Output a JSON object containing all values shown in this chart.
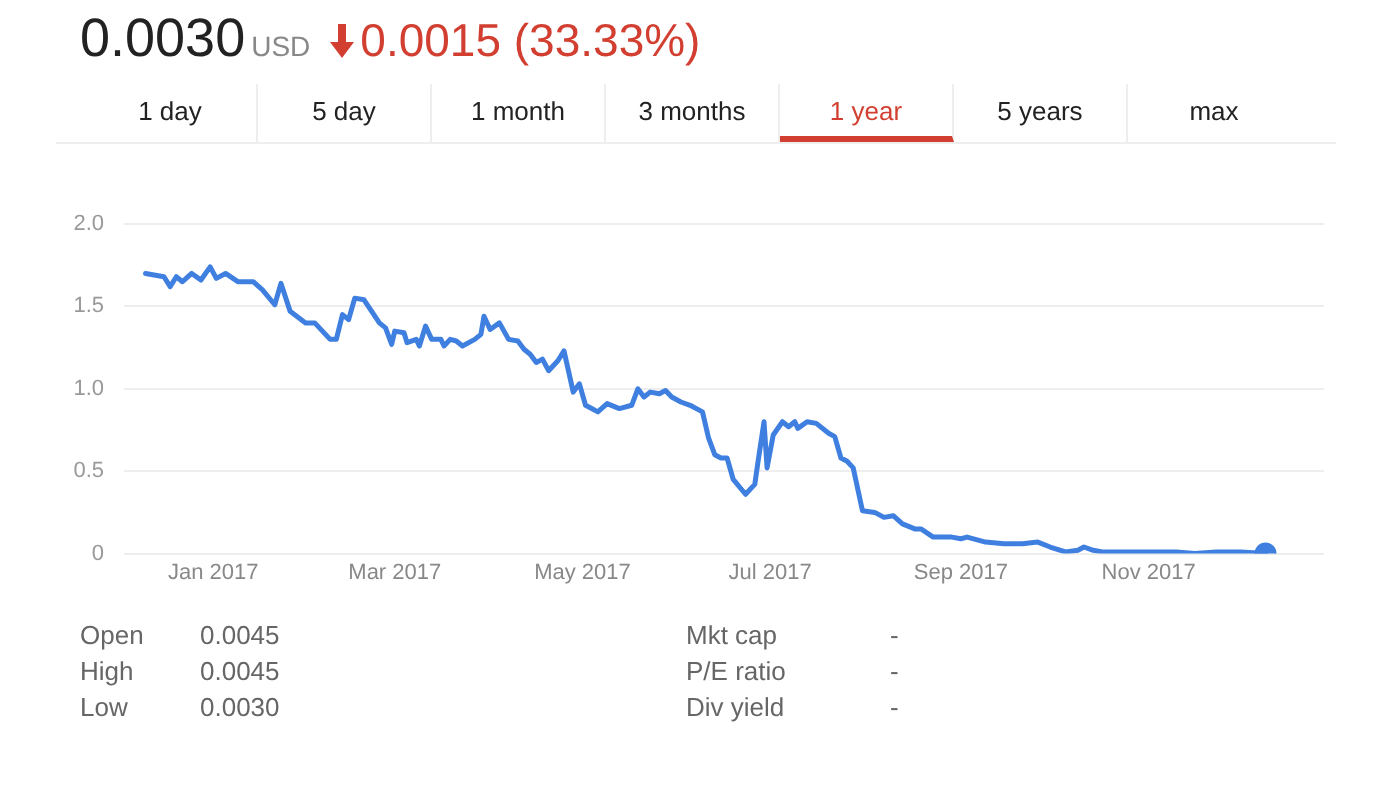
{
  "chart_data": {
    "type": "line",
    "title": "0.0030",
    "annotations": [
      "USD",
      "0.0015 (33.33%)",
      "1 day",
      "5 day",
      "1 month",
      "3 months",
      "1 year",
      "5 years",
      "max",
      "Open",
      "0.0045",
      "High",
      "0.0045",
      "Low",
      "0.0030",
      "Mkt cap",
      "-",
      "P/E ratio",
      "-",
      "Div yield",
      "-"
    ],
    "xlim": [
      "2016-12-03",
      "2017-12-28"
    ],
    "xticks": [
      {
        "value": "2017-01-01",
        "label": "Jan 2017"
      },
      {
        "value": "2017-03-01",
        "label": "Mar 2017"
      },
      {
        "value": "2017-05-01",
        "label": "May 2017"
      },
      {
        "value": "2017-07-01",
        "label": "Jul 2017"
      },
      {
        "value": "2017-09-01",
        "label": "Sep 2017"
      },
      {
        "value": "2017-11-01",
        "label": "Nov 2017"
      }
    ],
    "ylim": [
      0,
      2
    ],
    "yticks": [
      0,
      {
        "value": 0.5,
        "label": "0.5"
      },
      {
        "value": 1,
        "label": "1.0"
      },
      {
        "value": 1.5,
        "label": "1.5"
      },
      {
        "value": 2,
        "label": "2.0"
      }
    ],
    "grid": "y",
    "legend": false,
    "series": [
      {
        "color": "#3f7fe0",
        "marker": "none",
        "x": [
          "2016-12-10",
          "2016-12-16",
          "2016-12-18",
          "2016-12-20",
          "2016-12-22",
          "2016-12-25",
          "2016-12-28",
          "2016-12-31",
          "2017-01-02",
          "2017-01-05",
          "2017-01-09",
          "2017-01-14",
          "2017-01-17",
          "2017-01-21",
          "2017-01-23",
          "2017-01-26",
          "2017-01-31",
          "2017-02-03",
          "2017-02-08",
          "2017-02-10",
          "2017-02-12",
          "2017-02-14",
          "2017-02-16",
          "2017-02-19",
          "2017-02-24",
          "2017-02-26",
          "2017-02-28",
          "2017-03-01",
          "2017-03-04",
          "2017-03-05",
          "2017-03-08",
          "2017-03-09",
          "2017-03-11",
          "2017-03-13",
          "2017-03-16",
          "2017-03-17",
          "2017-03-19",
          "2017-03-21",
          "2017-03-23",
          "2017-03-27",
          "2017-03-29",
          "2017-03-30",
          "2017-04-01",
          "2017-04-04",
          "2017-04-07",
          "2017-04-10",
          "2017-04-12",
          "2017-04-14",
          "2017-04-16",
          "2017-04-18",
          "2017-04-20",
          "2017-04-23",
          "2017-04-25",
          "2017-04-28",
          "2017-04-30",
          "2017-05-02",
          "2017-05-04",
          "2017-05-06",
          "2017-05-09",
          "2017-05-13",
          "2017-05-17",
          "2017-05-19",
          "2017-05-21",
          "2017-05-23",
          "2017-05-26",
          "2017-05-28",
          "2017-05-30",
          "2017-06-02",
          "2017-06-05",
          "2017-06-09",
          "2017-06-11",
          "2017-06-13",
          "2017-06-15",
          "2017-06-17",
          "2017-06-19",
          "2017-06-23",
          "2017-06-26",
          "2017-06-27",
          "2017-06-29",
          "2017-06-30",
          "2017-07-02",
          "2017-07-05",
          "2017-07-07",
          "2017-07-09",
          "2017-07-10",
          "2017-07-13",
          "2017-07-16",
          "2017-07-20",
          "2017-07-22",
          "2017-07-24",
          "2017-07-26",
          "2017-07-28",
          "2017-07-31",
          "2017-08-04",
          "2017-08-07",
          "2017-08-10",
          "2017-08-13",
          "2017-08-17",
          "2017-08-19",
          "2017-08-23",
          "2017-08-29",
          "2017-09-01",
          "2017-09-03",
          "2017-09-09",
          "2017-09-15",
          "2017-09-21",
          "2017-09-26",
          "2017-09-30",
          "2017-10-05",
          "2017-10-09",
          "2017-10-11",
          "2017-10-14",
          "2017-10-17",
          "2017-11-01",
          "2017-11-10",
          "2017-11-16",
          "2017-11-23",
          "2017-12-01",
          "2017-12-09"
        ],
        "values": [
          1.7,
          1.68,
          1.62,
          1.68,
          1.65,
          1.7,
          1.66,
          1.74,
          1.67,
          1.7,
          1.65,
          1.65,
          1.6,
          1.51,
          1.64,
          1.47,
          1.4,
          1.4,
          1.3,
          1.3,
          1.45,
          1.42,
          1.55,
          1.54,
          1.4,
          1.37,
          1.27,
          1.35,
          1.34,
          1.28,
          1.3,
          1.26,
          1.38,
          1.3,
          1.3,
          1.26,
          1.3,
          1.29,
          1.26,
          1.3,
          1.33,
          1.44,
          1.36,
          1.4,
          1.3,
          1.29,
          1.24,
          1.21,
          1.16,
          1.18,
          1.11,
          1.17,
          1.23,
          0.98,
          1.03,
          0.9,
          0.88,
          0.86,
          0.91,
          0.88,
          0.9,
          1.0,
          0.95,
          0.98,
          0.97,
          0.99,
          0.95,
          0.92,
          0.9,
          0.86,
          0.7,
          0.6,
          0.58,
          0.58,
          0.45,
          0.36,
          0.42,
          0.55,
          0.8,
          0.52,
          0.72,
          0.8,
          0.77,
          0.8,
          0.76,
          0.8,
          0.79,
          0.73,
          0.71,
          0.58,
          0.56,
          0.52,
          0.26,
          0.25,
          0.22,
          0.23,
          0.18,
          0.15,
          0.15,
          0.1,
          0.1,
          0.09,
          0.1,
          0.07,
          0.06,
          0.06,
          0.07,
          0.04,
          0.01,
          0.02,
          0.04,
          0.02,
          0.01,
          0.01,
          0.01,
          0.0,
          0.01,
          0.01,
          0.0
        ]
      },
      {
        "type": "scatter",
        "color": "#3f7fe0",
        "marker": "circle",
        "x": [
          "2017-12-09"
        ],
        "values": [
          0.0
        ]
      }
    ]
  }
}
